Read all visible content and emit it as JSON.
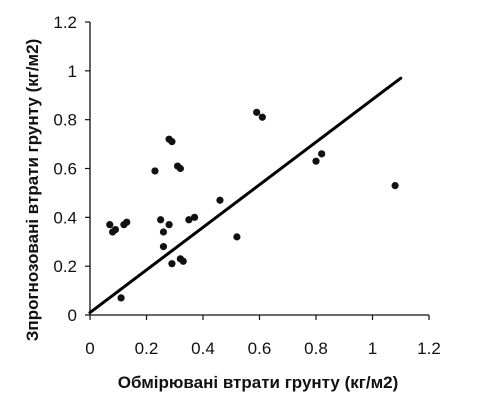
{
  "chart_data": {
    "type": "scatter",
    "xlabel": "Обмірювані втрати грунту (кг/м2)",
    "ylabel": "Зпрогнозовані втрати грунту (кг/м2)",
    "xlim": [
      0,
      1.2
    ],
    "ylim": [
      0,
      1.2
    ],
    "x_ticks": [
      "0",
      "0.2",
      "0.4",
      "0.6",
      "0.8",
      "1",
      "1.2"
    ],
    "y_ticks": [
      "0",
      "0.2",
      "0.4",
      "0.6",
      "0.8",
      "1",
      "1.2"
    ],
    "grid": false,
    "legend": "none",
    "points": [
      {
        "x": 0.07,
        "y": 0.37
      },
      {
        "x": 0.08,
        "y": 0.34
      },
      {
        "x": 0.09,
        "y": 0.35
      },
      {
        "x": 0.11,
        "y": 0.07
      },
      {
        "x": 0.12,
        "y": 0.37
      },
      {
        "x": 0.13,
        "y": 0.38
      },
      {
        "x": 0.23,
        "y": 0.59
      },
      {
        "x": 0.25,
        "y": 0.39
      },
      {
        "x": 0.26,
        "y": 0.34
      },
      {
        "x": 0.26,
        "y": 0.28
      },
      {
        "x": 0.28,
        "y": 0.37
      },
      {
        "x": 0.28,
        "y": 0.72
      },
      {
        "x": 0.29,
        "y": 0.21
      },
      {
        "x": 0.29,
        "y": 0.71
      },
      {
        "x": 0.31,
        "y": 0.61
      },
      {
        "x": 0.32,
        "y": 0.6
      },
      {
        "x": 0.32,
        "y": 0.23
      },
      {
        "x": 0.33,
        "y": 0.22
      },
      {
        "x": 0.35,
        "y": 0.39
      },
      {
        "x": 0.37,
        "y": 0.4
      },
      {
        "x": 0.46,
        "y": 0.47
      },
      {
        "x": 0.52,
        "y": 0.32
      },
      {
        "x": 0.59,
        "y": 0.83
      },
      {
        "x": 0.61,
        "y": 0.81
      },
      {
        "x": 0.8,
        "y": 0.63
      },
      {
        "x": 0.82,
        "y": 0.66
      },
      {
        "x": 1.08,
        "y": 0.53
      }
    ],
    "trendline": {
      "x": [
        0,
        1.1
      ],
      "y": [
        0.01,
        0.97
      ]
    },
    "colors": {
      "points": "#111111",
      "line": "#000000",
      "axes": "#111111"
    }
  }
}
